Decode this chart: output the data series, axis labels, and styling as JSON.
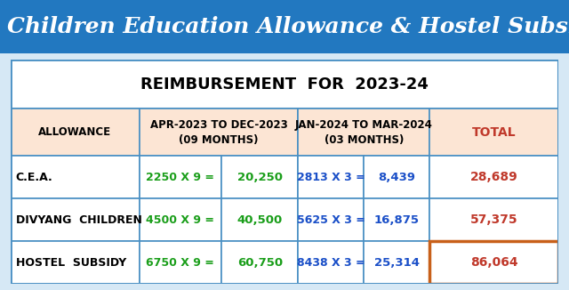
{
  "title": "Children Education Allowance & Hostel Subsidy",
  "title_bg": "#2278c0",
  "title_color": "#ffffff",
  "table_title": "REIMBURSEMENT  FOR  2023-24",
  "header_bg": "#fce5d4",
  "border_color": "#4a90c4",
  "last_row_total_border": "#c8601a",
  "outer_bg": "#d6e8f5",
  "table_bg": "#ffffff",
  "rows": [
    {
      "allowance": "C.E.A.",
      "calc1": "2250 X 9 =",
      "val1": "20,250",
      "calc2": "2813 X 3 =",
      "val2": "8,439",
      "total": "28,689"
    },
    {
      "allowance": "DIVYANG  CHILDREN",
      "calc1": "4500 X 9 =",
      "val1": "40,500",
      "calc2": "5625 X 3 =",
      "val2": "16,875",
      "total": "57,375"
    },
    {
      "allowance": "HOSTEL  SUBSIDY",
      "calc1": "6750 X 9 =",
      "val1": "60,750",
      "calc2": "8438 X 3 =",
      "val2": "25,314",
      "total": "86,064"
    }
  ],
  "col1_header": "ALLOWANCE",
  "col2_header": "APR-2023 TO DEC-2023\n(09 MONTHS)",
  "col3_header": "JAN-2024 TO MAR-2024\n(03 MONTHS)",
  "col4_header": "TOTAL",
  "col_header_total_color": "#c0392b",
  "green_color": "#1a9e1a",
  "blue_color": "#1a4fc8",
  "red_color": "#c0392b",
  "black_color": "#000000",
  "title_fontsize": 18,
  "table_title_fontsize": 13,
  "header_fontsize": 8.5,
  "data_fontsize": 9.0
}
